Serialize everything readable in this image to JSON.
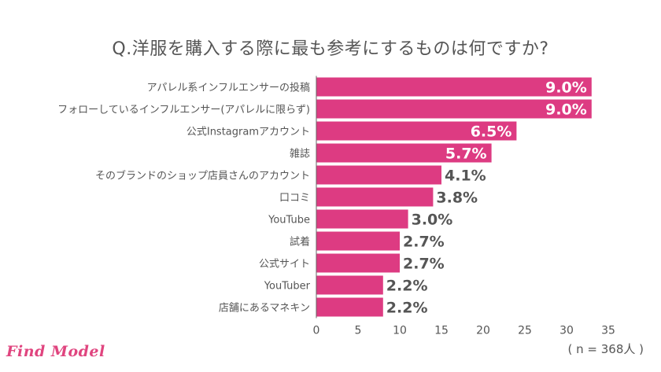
{
  "title": "Q.洋服を購入する際に最も参考にするものは何ですか?",
  "sample_note": "( n = 368人 )",
  "logo_text": "Find Model",
  "colors": {
    "bar": "#dd3b82",
    "logo": "#e0457f",
    "text": "#555555",
    "axis": "#666666"
  },
  "chart_data": {
    "type": "bar",
    "orientation": "horizontal",
    "categories": [
      "アパレル系インフルエンサーの投稿",
      "フォローしているインフルエンサー(アパレルに限らず)",
      "公式Instagramアカウント",
      "雑誌",
      "そのブランドのショップ店員さんのアカウント",
      "口コミ",
      "YouTube",
      "試着",
      "公式サイト",
      "YouTuber",
      "店舗にあるマネキン"
    ],
    "values": [
      33,
      33,
      24,
      21,
      15,
      14,
      11,
      10,
      10,
      8,
      8
    ],
    "data_labels": [
      "9.0%",
      "9.0%",
      "6.5%",
      "5.7%",
      "4.1%",
      "3.8%",
      "3.0%",
      "2.7%",
      "2.7%",
      "2.2%",
      "2.2%"
    ],
    "xticks": [
      0,
      5,
      10,
      15,
      20,
      25,
      30,
      35
    ],
    "xlim": [
      0,
      35
    ],
    "grid": false,
    "legend": "none"
  }
}
